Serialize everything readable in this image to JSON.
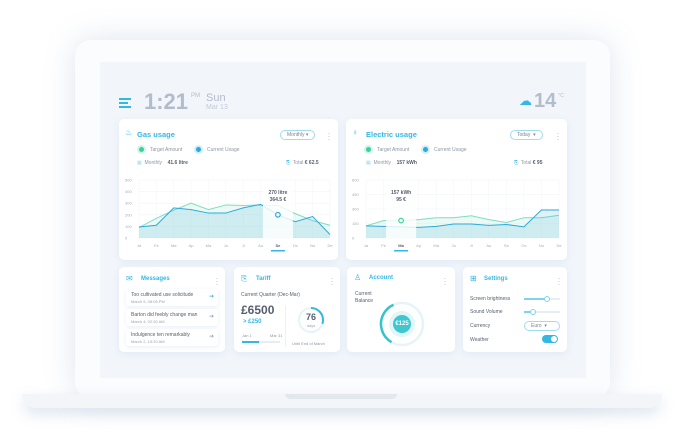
{
  "header": {
    "time": "1:21",
    "ampm": "PM",
    "day": "Sun",
    "date": "Mar 13",
    "temperature": "14",
    "temp_unit": "°C",
    "weather_icon": "cloud-snow-icon"
  },
  "gas": {
    "title": "Gas usage",
    "period": "Monthly",
    "legend": [
      "Target Amount",
      "Current Usage"
    ],
    "monthly_label": "Monthly",
    "monthly_value": "41.6 litre",
    "total_label": "Total",
    "total_value": "€ 62.5",
    "tooltip": [
      "270 litre",
      "364.5 €"
    ],
    "active_month": "Se"
  },
  "electric": {
    "title": "Electric usage",
    "period": "Today",
    "legend": [
      "Target Amount",
      "Current Usage"
    ],
    "monthly_label": "Monthly",
    "monthly_value": "157 kWh",
    "total_label": "Total",
    "total_value": "€ 95",
    "tooltip": [
      "157 kWh",
      "95 €"
    ],
    "active_month": "Ma"
  },
  "chart_data": [
    {
      "type": "area",
      "categories": [
        "Ja",
        "Fe",
        "Ma",
        "Ap",
        "Ma",
        "Ju",
        "Jl",
        "Au",
        "Se",
        "Oc",
        "No",
        "De"
      ],
      "ylim": [
        0,
        500
      ],
      "yticks": [
        0,
        100,
        200,
        300,
        400,
        500
      ],
      "grid": true,
      "series": [
        {
          "name": "Target Amount",
          "values": [
            90,
            170,
            240,
            300,
            245,
            285,
            280,
            285,
            280,
            210,
            150,
            110
          ]
        },
        {
          "name": "Current Usage",
          "values": [
            95,
            110,
            260,
            245,
            215,
            215,
            260,
            290,
            200,
            140,
            185,
            30
          ]
        }
      ]
    },
    {
      "type": "area",
      "categories": [
        "Ja",
        "Fe",
        "Ma",
        "Ap",
        "Ma",
        "Ju",
        "Jl",
        "Au",
        "Se",
        "Oc",
        "No",
        "De"
      ],
      "ylim": [
        0,
        600
      ],
      "yticks": [
        0,
        150,
        300,
        450,
        600
      ],
      "grid": true,
      "series": [
        {
          "name": "Target Amount",
          "values": [
            125,
            180,
            180,
            190,
            210,
            210,
            230,
            190,
            160,
            210,
            210,
            235
          ]
        },
        {
          "name": "Current Usage",
          "values": [
            125,
            120,
            115,
            110,
            120,
            145,
            145,
            130,
            140,
            115,
            290,
            290
          ]
        }
      ]
    }
  ],
  "messages": {
    "title": "Messages",
    "items": [
      {
        "text": "Too cultivated use solicitude",
        "date": "March 5, 08:05 PM"
      },
      {
        "text": "Barton did feebly change man",
        "date": "March 4, 02:30 AM"
      },
      {
        "text": "Indulgence ten remarkably",
        "date": "March 2, 15:20 AM"
      }
    ]
  },
  "tariff": {
    "title": "Tariff",
    "quarter": "Current Quarter (Dec-Mar)",
    "amount": "£6500",
    "delta": "> £250",
    "start": "Jan 1",
    "end": "Mar 31",
    "days": "76",
    "days_label": "days",
    "until": "Until End of March",
    "progress": 0.45,
    "days_progress": 0.3
  },
  "account": {
    "title": "Account",
    "label": "Current Balance",
    "balance": "€125",
    "gauge": 0.35
  },
  "settings": {
    "title": "Settings",
    "brightness_label": "Screen brightness",
    "brightness": 0.65,
    "volume_label": "Sound Volume",
    "volume": 0.25,
    "currency_label": "Currency",
    "currency": "Euro",
    "weather_label": "Weather",
    "weather_on": true
  },
  "colors": {
    "accent": "#35b7e6",
    "target": "#7fdcc4",
    "current": "#2fa9d8"
  }
}
